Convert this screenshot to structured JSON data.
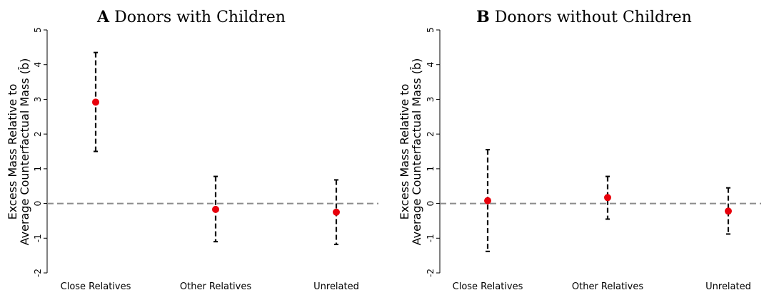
{
  "chart_data": [
    {
      "type": "errorbar",
      "panel_letter": "A",
      "title": "Donors with Children",
      "ylabel_line1": "Excess Mass Relative to",
      "ylabel_line2": "Average Counterfactual Mass (b̂)",
      "categories": [
        "Close Relatives",
        "Other Relatives",
        "Unrelated"
      ],
      "estimates": [
        2.92,
        -0.17,
        -0.25
      ],
      "ci_low": [
        1.5,
        -1.1,
        -1.18
      ],
      "ci_high": [
        4.35,
        0.78,
        0.68
      ],
      "ylim": [
        -2,
        5
      ],
      "yticks": [
        -2,
        -1,
        0,
        1,
        2,
        3,
        4,
        5
      ],
      "reference_line": 0,
      "point_color": "#e8000b",
      "reference_line_color": "#8c8c8c"
    },
    {
      "type": "errorbar",
      "panel_letter": "B",
      "title": "Donors without Children",
      "ylabel_line1": "Excess Mass Relative to",
      "ylabel_line2": "Average Counterfactual Mass (b̂)",
      "categories": [
        "Close Relatives",
        "Other Relatives",
        "Unrelated"
      ],
      "estimates": [
        0.08,
        0.17,
        -0.22
      ],
      "ci_low": [
        -1.38,
        -0.45,
        -0.88
      ],
      "ci_high": [
        1.55,
        0.78,
        0.45
      ],
      "ylim": [
        -2,
        5
      ],
      "yticks": [
        -2,
        -1,
        0,
        1,
        2,
        3,
        4,
        5
      ],
      "reference_line": 0,
      "point_color": "#e8000b",
      "reference_line_color": "#8c8c8c"
    }
  ]
}
